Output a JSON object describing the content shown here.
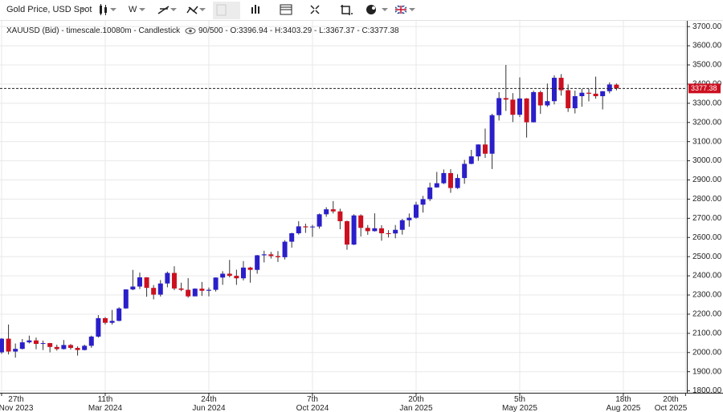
{
  "toolbar": {
    "instrument": "Gold Price, USD Spot",
    "interval": "W"
  },
  "chart_data": {
    "type": "candlestick",
    "legend_title": "XAUUSD (Bid) - timescale.10080m - Candlestick",
    "legend_values": "90/500 - O:3396.94 - H:3403.29 - L:3367.37 - C:3377.38",
    "up_color": "#2a1fc9",
    "down_color": "#cc1020",
    "open": [
      2001,
      2072,
      2005,
      2019,
      2053,
      2063,
      2045,
      2049,
      2029,
      2018,
      2039,
      2024,
      2013,
      2035,
      2083,
      2179,
      2155,
      2165,
      2230,
      2329,
      2344,
      2392,
      2337,
      2302,
      2360,
      2415,
      2334,
      2327,
      2293,
      2333,
      2322,
      2327,
      2391,
      2411,
      2400,
      2387,
      2443,
      2431,
      2507,
      2512,
      2503,
      2497,
      2578,
      2622,
      2658,
      2653,
      2657,
      2721,
      2747,
      2736,
      2685,
      2563,
      2715,
      2650,
      2633,
      2648,
      2622,
      2621,
      2640,
      2690,
      2703,
      2771,
      2800,
      2861,
      2883,
      2936,
      2858,
      2910,
      2984,
      3023,
      3085,
      3037,
      3238,
      3327,
      3319,
      3240,
      3325,
      3201,
      3358,
      3289,
      3311,
      3433,
      3368,
      3274,
      3337,
      3355,
      3350,
      3337,
      3363,
      3396.94
    ],
    "high": [
      2075,
      2146,
      2047,
      2070,
      2088,
      2078,
      2062,
      2050,
      2041,
      2065,
      2044,
      2032,
      2041,
      2088,
      2195,
      2185,
      2222,
      2236,
      2330,
      2431,
      2417,
      2393,
      2352,
      2378,
      2422,
      2450,
      2364,
      2388,
      2335,
      2368,
      2339,
      2392,
      2424,
      2483,
      2432,
      2477,
      2447,
      2509,
      2531,
      2525,
      2529,
      2586,
      2625,
      2685,
      2672,
      2666,
      2725,
      2758,
      2790,
      2750,
      2688,
      2721,
      2721,
      2665,
      2726,
      2664,
      2638,
      2665,
      2697,
      2725,
      2786,
      2817,
      2886,
      2942,
      2955,
      2956,
      2930,
      3005,
      3057,
      3086,
      3168,
      3245,
      3358,
      3500,
      3353,
      3435,
      3327,
      3366,
      3366,
      3403,
      3446,
      3452,
      3398,
      3366,
      3375,
      3377,
      3439,
      3363,
      3409,
      3403.29
    ],
    "low": [
      1993,
      1990,
      1973,
      2016,
      2047,
      2017,
      2013,
      2001,
      2010,
      2016,
      2015,
      1984,
      2011,
      2025,
      2078,
      2146,
      2146,
      2163,
      2228,
      2325,
      2331,
      2291,
      2277,
      2292,
      2340,
      2325,
      2320,
      2286,
      2301,
      2295,
      2293,
      2318,
      2353,
      2392,
      2353,
      2376,
      2364,
      2411,
      2470,
      2490,
      2472,
      2485,
      2547,
      2615,
      2624,
      2603,
      2646,
      2708,
      2725,
      2643,
      2536,
      2560,
      2605,
      2614,
      2631,
      2583,
      2600,
      2596,
      2615,
      2656,
      2698,
      2730,
      2790,
      2860,
      2878,
      2833,
      2853,
      2880,
      2982,
      3000,
      3015,
      2957,
      3210,
      3260,
      3202,
      3228,
      3121,
      3200,
      3245,
      3281,
      3294,
      3340,
      3255,
      3247,
      3282,
      3310,
      3324,
      3268,
      3352,
      3367.37
    ],
    "close": [
      2072,
      2005,
      2019,
      2053,
      2063,
      2045,
      2049,
      2029,
      2018,
      2039,
      2024,
      2013,
      2035,
      2083,
      2179,
      2155,
      2165,
      2230,
      2329,
      2344,
      2392,
      2337,
      2302,
      2360,
      2415,
      2334,
      2327,
      2293,
      2333,
      2322,
      2327,
      2391,
      2411,
      2400,
      2387,
      2443,
      2431,
      2507,
      2512,
      2503,
      2497,
      2578,
      2622,
      2658,
      2653,
      2657,
      2721,
      2747,
      2736,
      2685,
      2563,
      2715,
      2650,
      2633,
      2648,
      2622,
      2621,
      2640,
      2690,
      2703,
      2771,
      2800,
      2861,
      2883,
      2936,
      2858,
      2910,
      2984,
      3023,
      3085,
      3037,
      3238,
      3327,
      3319,
      3240,
      3325,
      3201,
      3358,
      3289,
      3311,
      3433,
      3368,
      3274,
      3337,
      3355,
      3350,
      3337,
      3363,
      3398,
      3377.38
    ],
    "price_line": 3377.38,
    "xlim": [
      -0.23,
      99.19
    ],
    "xticks": [
      {
        "value": 0,
        "label": "27th\nNov 2023"
      },
      {
        "value": 15,
        "label": "11th\nMar 2024"
      },
      {
        "value": 30,
        "label": "24th\nJun 2024"
      },
      {
        "value": 45,
        "label": "7th\nOct 2024"
      },
      {
        "value": 60,
        "label": "20th\nJan 2025"
      },
      {
        "value": 75,
        "label": "5th\nMay 2025"
      },
      {
        "value": 90,
        "label": "18th\nAug 2025"
      },
      {
        "value": 99,
        "label": "20th\nOct 2025"
      }
    ],
    "ylim": [
      1790,
      3730
    ],
    "yticks": [
      {
        "value": 1800,
        "label": "1800.00"
      },
      {
        "value": 1900,
        "label": "1900.00"
      },
      {
        "value": 2000,
        "label": "2000.00"
      },
      {
        "value": 2100,
        "label": "2100.00"
      },
      {
        "value": 2200,
        "label": "2200.00"
      },
      {
        "value": 2300,
        "label": "2300.00"
      },
      {
        "value": 2400,
        "label": "2400.00"
      },
      {
        "value": 2500,
        "label": "2500.00"
      },
      {
        "value": 2600,
        "label": "2600.00"
      },
      {
        "value": 2700,
        "label": "2700.00"
      },
      {
        "value": 2800,
        "label": "2800.00"
      },
      {
        "value": 2900,
        "label": "2900.00"
      },
      {
        "value": 3000,
        "label": "3000.00"
      },
      {
        "value": 3100,
        "label": "3100.00"
      },
      {
        "value": 3200,
        "label": "3200.00"
      },
      {
        "value": 3300,
        "label": "3300.00"
      },
      {
        "value": 3400,
        "label": "3400.00"
      },
      {
        "value": 3500,
        "label": "3500.00"
      },
      {
        "value": 3600,
        "label": "3600.00"
      },
      {
        "value": 3700,
        "label": "3700.00"
      }
    ],
    "grid": true
  }
}
